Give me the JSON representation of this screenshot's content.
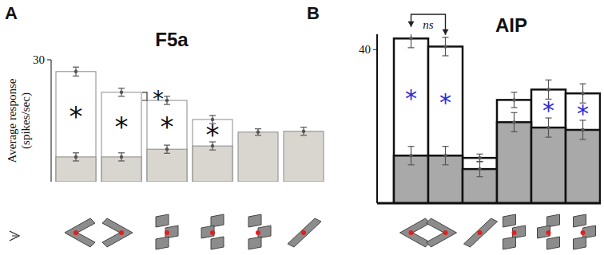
{
  "chart_data": [
    {
      "type": "bar",
      "panel": "A",
      "title": "F5a",
      "y_label": "Average response (spikes/sec)",
      "categories": [
        null,
        null,
        null,
        null,
        null,
        null
      ],
      "ylim": [
        0,
        30
      ],
      "yticks": [
        30
      ],
      "stacked": false,
      "series": [
        {
          "color": "#ffffff",
          "values": [
            27.1,
            22.0,
            20.0,
            15.3,
            null,
            null
          ],
          "errors": [
            1.1,
            1.0,
            1.0,
            1.0,
            null,
            null
          ]
        },
        {
          "color": "#d9d6d0",
          "values": [
            6.1,
            6.1,
            8.0,
            8.8,
            12.2,
            12.4
          ],
          "errors": [
            1.0,
            1.0,
            1.0,
            1.0,
            0.8,
            1.0
          ]
        }
      ],
      "annotations": {
        "bars": [
          "*",
          "*",
          "*",
          "*",
          null,
          null
        ],
        "pairs": [
          null,
          "*",
          null,
          null,
          null
        ]
      }
    },
    {
      "type": "bar",
      "panel": "B",
      "title": "AIP",
      "categories": [
        null,
        null,
        null,
        null,
        null,
        null
      ],
      "ylim": [
        0,
        44
      ],
      "yticks": [
        40
      ],
      "stacked": false,
      "series": [
        {
          "color": "#ffffff",
          "values": [
            42.9,
            40.8,
            11.8,
            26.9,
            29.6,
            28.6
          ],
          "errors": [
            2.4,
            2.4,
            1.0,
            2.0,
            2.5,
            2.5
          ]
        },
        {
          "color": "#a9a9a9",
          "values": [
            12.4,
            12.4,
            8.9,
            21.1,
            19.7,
            19.1
          ],
          "errors": [
            2.4,
            2.4,
            2.0,
            2.5,
            2.5,
            2.5
          ]
        }
      ],
      "annotations": {
        "bars": [
          "*",
          "*",
          null,
          null,
          "*",
          "*"
        ],
        "pairs": [
          "ns",
          null,
          null,
          null,
          null
        ]
      }
    }
  ]
}
